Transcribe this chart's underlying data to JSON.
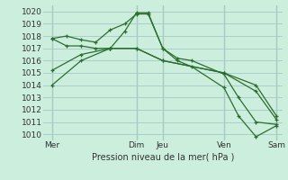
{
  "xlabel": "Pression niveau de la mer( hPa )",
  "bg_color": "#cceedd",
  "grid_color": "#aacccc",
  "line_color": "#2d6e2d",
  "vline_color": "#4a7a4a",
  "ylim": [
    1009.5,
    1020.5
  ],
  "yticks": [
    1010,
    1011,
    1012,
    1013,
    1014,
    1015,
    1016,
    1017,
    1018,
    1019,
    1020
  ],
  "xlim": [
    0,
    8.2
  ],
  "xtick_positions": [
    0.3,
    3.2,
    4.1,
    6.2,
    8.0
  ],
  "xtick_labels": [
    "Mer",
    "Dim",
    "Jeu",
    "Ven",
    "Sam"
  ],
  "vline_positions": [
    0.3,
    3.2,
    4.1,
    6.2,
    8.0
  ],
  "series": [
    {
      "x": [
        0.3,
        0.8,
        1.3,
        1.8,
        2.3,
        2.8,
        3.2,
        3.6,
        4.1,
        4.6,
        5.1,
        6.2,
        6.7,
        7.3,
        8.0
      ],
      "y": [
        1017.8,
        1018.0,
        1017.7,
        1017.5,
        1018.5,
        1019.0,
        1019.8,
        1019.8,
        1017.0,
        1016.2,
        1016.0,
        1014.9,
        1013.0,
        1011.0,
        1010.8
      ]
    },
    {
      "x": [
        0.3,
        0.8,
        1.3,
        1.8,
        2.3,
        2.8,
        3.2,
        3.6,
        4.1,
        4.6,
        5.1,
        6.2,
        6.7,
        7.3,
        8.0
      ],
      "y": [
        1017.8,
        1017.2,
        1017.2,
        1017.0,
        1017.0,
        1018.4,
        1019.9,
        1019.9,
        1017.0,
        1016.0,
        1015.5,
        1013.8,
        1011.5,
        1009.8,
        1010.7
      ]
    },
    {
      "x": [
        0.3,
        1.3,
        2.3,
        3.2,
        4.1,
        6.2,
        7.3,
        8.0
      ],
      "y": [
        1014.0,
        1016.0,
        1017.0,
        1017.0,
        1016.0,
        1015.0,
        1014.0,
        1011.5
      ]
    },
    {
      "x": [
        0.3,
        1.3,
        2.3,
        3.2,
        4.1,
        6.2,
        7.3,
        8.0
      ],
      "y": [
        1015.2,
        1016.5,
        1017.0,
        1017.0,
        1016.0,
        1015.0,
        1013.5,
        1011.2
      ]
    }
  ]
}
